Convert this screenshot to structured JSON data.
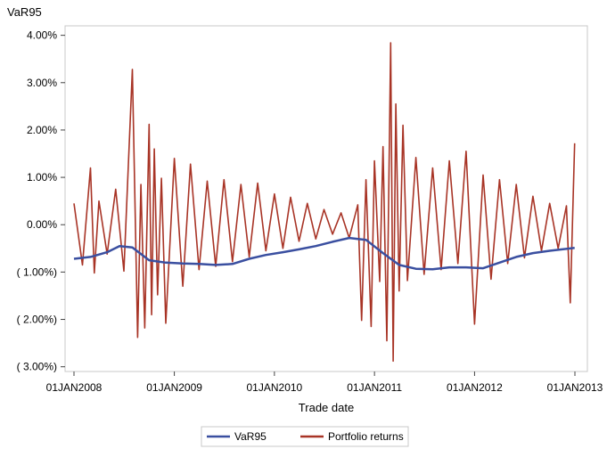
{
  "chart_data": {
    "type": "line",
    "ylabel": "VaR95",
    "xlabel": "Trade date",
    "ylim": [
      -0.031,
      0.042
    ],
    "y_ticks": [
      {
        "value": 0.04,
        "label": "4.00%"
      },
      {
        "value": 0.03,
        "label": "3.00%"
      },
      {
        "value": 0.02,
        "label": "2.00%"
      },
      {
        "value": 0.01,
        "label": "1.00%"
      },
      {
        "value": 0.0,
        "label": "0.00%"
      },
      {
        "value": -0.01,
        "label": "( 1.00%)"
      },
      {
        "value": -0.02,
        "label": "( 2.00%)"
      },
      {
        "value": -0.03,
        "label": "( 3.00%)"
      }
    ],
    "xlim": [
      "2008-01-01",
      "2013-01-01"
    ],
    "x_ticks": [
      {
        "value": "2008-01-01",
        "label": "01JAN2008"
      },
      {
        "value": "2009-01-01",
        "label": "01JAN2009"
      },
      {
        "value": "2010-01-01",
        "label": "01JAN2010"
      },
      {
        "value": "2011-01-01",
        "label": "01JAN2011"
      },
      {
        "value": "2012-01-01",
        "label": "01JAN2012"
      },
      {
        "value": "2013-01-01",
        "label": "01JAN2013"
      }
    ],
    "grid": false,
    "legend_position": "bottom",
    "series": [
      {
        "name": "VaR95",
        "color": "#3a4fa0",
        "x": [
          "2008-01-01",
          "2008-03-01",
          "2008-05-01",
          "2008-06-15",
          "2008-08-01",
          "2008-10-01",
          "2008-12-01",
          "2009-02-01",
          "2009-04-01",
          "2009-06-01",
          "2009-08-01",
          "2009-10-01",
          "2009-12-01",
          "2010-02-01",
          "2010-04-01",
          "2010-06-01",
          "2010-08-01",
          "2010-10-01",
          "2010-12-01",
          "2011-02-01",
          "2011-04-01",
          "2011-06-01",
          "2011-08-01",
          "2011-10-01",
          "2011-12-01",
          "2012-02-01",
          "2012-04-01",
          "2012-06-01",
          "2012-08-01",
          "2012-10-01",
          "2012-12-31"
        ],
        "values": [
          -0.0072,
          -0.0068,
          -0.0058,
          -0.0045,
          -0.0048,
          -0.0075,
          -0.008,
          -0.0082,
          -0.0083,
          -0.0085,
          -0.0083,
          -0.0072,
          -0.0064,
          -0.0058,
          -0.0052,
          -0.0045,
          -0.0036,
          -0.0028,
          -0.0032,
          -0.006,
          -0.0085,
          -0.0093,
          -0.0094,
          -0.009,
          -0.009,
          -0.0092,
          -0.008,
          -0.0068,
          -0.006,
          -0.0055,
          -0.0049
        ]
      },
      {
        "name": "Portfolio returns",
        "color": "#a83426",
        "x": [
          "2008-01-01",
          "2008-02-01",
          "2008-03-01",
          "2008-03-15",
          "2008-04-01",
          "2008-05-01",
          "2008-06-01",
          "2008-07-01",
          "2008-08-01",
          "2008-08-20",
          "2008-09-01",
          "2008-09-15",
          "2008-10-01",
          "2008-10-10",
          "2008-10-20",
          "2008-11-01",
          "2008-11-15",
          "2008-12-01",
          "2009-01-01",
          "2009-02-01",
          "2009-03-01",
          "2009-04-01",
          "2009-05-01",
          "2009-06-01",
          "2009-07-01",
          "2009-08-01",
          "2009-09-01",
          "2009-10-01",
          "2009-11-01",
          "2009-12-01",
          "2010-01-01",
          "2010-02-01",
          "2010-03-01",
          "2010-04-01",
          "2010-05-01",
          "2010-06-01",
          "2010-07-01",
          "2010-08-01",
          "2010-09-01",
          "2010-10-01",
          "2010-11-01",
          "2010-11-15",
          "2010-12-01",
          "2010-12-20",
          "2011-01-01",
          "2011-01-20",
          "2011-02-01",
          "2011-02-15",
          "2011-03-01",
          "2011-03-10",
          "2011-03-20",
          "2011-04-01",
          "2011-04-15",
          "2011-05-01",
          "2011-06-01",
          "2011-07-01",
          "2011-08-01",
          "2011-09-01",
          "2011-10-01",
          "2011-11-01",
          "2011-12-01",
          "2012-01-01",
          "2012-02-01",
          "2012-03-01",
          "2012-04-01",
          "2012-05-01",
          "2012-06-01",
          "2012-07-01",
          "2012-08-01",
          "2012-09-01",
          "2012-10-01",
          "2012-11-01",
          "2012-12-01",
          "2012-12-15",
          "2012-12-31"
        ],
        "values": [
          0.0045,
          -0.0085,
          0.012,
          -0.0102,
          0.005,
          -0.0062,
          0.0075,
          -0.0098,
          0.0328,
          -0.0238,
          0.0085,
          -0.0218,
          0.0212,
          -0.019,
          0.016,
          -0.0148,
          0.0098,
          -0.0208,
          0.014,
          -0.013,
          0.0128,
          -0.0095,
          0.0092,
          -0.0088,
          0.0095,
          -0.0078,
          0.0085,
          -0.0068,
          0.0088,
          -0.0055,
          0.0065,
          -0.005,
          0.0058,
          -0.0035,
          0.0045,
          -0.003,
          0.0032,
          -0.002,
          0.0025,
          -0.0028,
          0.0042,
          -0.0202,
          0.0095,
          -0.0215,
          0.0135,
          -0.012,
          0.0165,
          -0.0245,
          0.0384,
          -0.0288,
          0.0255,
          -0.014,
          0.021,
          -0.0118,
          0.0142,
          -0.0105,
          0.012,
          -0.0095,
          0.0135,
          -0.0082,
          0.0155,
          -0.021,
          0.0105,
          -0.0115,
          0.0095,
          -0.0082,
          0.0085,
          -0.007,
          0.006,
          -0.0055,
          0.0045,
          -0.005,
          0.004,
          -0.0165,
          0.0172
        ]
      }
    ]
  }
}
